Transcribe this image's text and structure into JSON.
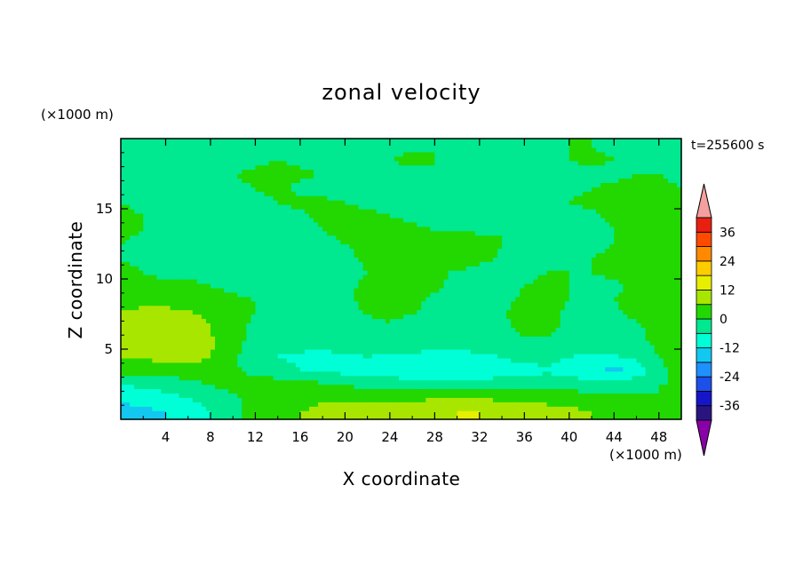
{
  "chart_data": {
    "type": "heatmap",
    "title": "zonal velocity",
    "xlabel": "X coordinate",
    "ylabel": "Z coordinate",
    "x_unit": "(×1000 m)",
    "y_unit": "(×1000 m)",
    "time_label": "t=255600 s",
    "xlim": [
      0,
      50
    ],
    "ylim": [
      0,
      20
    ],
    "x_ticks": [
      4,
      8,
      12,
      16,
      20,
      24,
      28,
      32,
      36,
      40,
      44,
      48
    ],
    "y_ticks": [
      5,
      10,
      15
    ],
    "colorbar": {
      "levels": [
        -42,
        -36,
        -30,
        -24,
        -18,
        -12,
        -6,
        0,
        6,
        12,
        18,
        24,
        30,
        36,
        42
      ],
      "labels": [
        36,
        24,
        12,
        0,
        -12,
        -24,
        -36
      ],
      "colors": [
        "#5c00a8",
        "#2a1580",
        "#1616c8",
        "#1c50e8",
        "#1e90ff",
        "#12c8f0",
        "#00ffd6",
        "#00e890",
        "#22d800",
        "#a8e600",
        "#e6ef00",
        "#ffcc00",
        "#ff8a00",
        "#ff4a00",
        "#e82010",
        "#f4a0a0"
      ],
      "under_color": "#8a00a8",
      "over_color": "#f4a0a0"
    },
    "field": {
      "x": [
        0,
        2,
        4,
        6,
        8,
        10,
        12,
        14,
        16,
        18,
        20,
        22,
        24,
        26,
        28,
        30,
        32,
        34,
        36,
        38,
        40,
        42,
        44,
        46,
        48,
        50
      ],
      "z": [
        0.5,
        1.5,
        2.5,
        3.5,
        4.5,
        5.5,
        6.5,
        7.5,
        8.5,
        9.5,
        10.5,
        11.5,
        12.5,
        13.5,
        14.5,
        15.5,
        16.5,
        17.5,
        18.5,
        19.5
      ],
      "values": [
        [
          -16,
          -14,
          -12,
          -10,
          -6,
          -2,
          2,
          4,
          6,
          8,
          8,
          9,
          10,
          10,
          11,
          12,
          12,
          11,
          10,
          9,
          8,
          6,
          4,
          2,
          1,
          0
        ],
        [
          -10,
          -9,
          -8,
          -6,
          -4,
          -1,
          2,
          3,
          4,
          5,
          5,
          5,
          5,
          5,
          6,
          6,
          6,
          5,
          5,
          4,
          3,
          3,
          2,
          1,
          0,
          0
        ],
        [
          -6,
          -5,
          -4,
          -2,
          0,
          2,
          4,
          3,
          2,
          1,
          0,
          -2,
          -3,
          -3,
          -3,
          -3,
          -3,
          -3,
          -2,
          -2,
          -2,
          -4,
          -3,
          -2,
          0,
          0
        ],
        [
          2,
          2,
          3,
          3,
          4,
          1,
          -2,
          -4,
          -6,
          -7,
          -8,
          -9,
          -9,
          -10,
          -11,
          -11,
          -10,
          -9,
          -8,
          -7,
          -8,
          -11,
          -14,
          -10,
          -2,
          2
        ],
        [
          6,
          7,
          8,
          8,
          6,
          1,
          -3,
          -6,
          -7,
          -8,
          -7,
          -6,
          -7,
          -7,
          -8,
          -8,
          -7,
          -6,
          -4,
          -4,
          -6,
          -7,
          -7,
          -4,
          0,
          4
        ],
        [
          9,
          11,
          11,
          10,
          7,
          2,
          -2,
          -3,
          -4,
          -3,
          -3,
          -2,
          -2,
          -3,
          -4,
          -4,
          -3,
          -2,
          -1,
          -1,
          -2,
          -3,
          -3,
          -1,
          1,
          6
        ],
        [
          9,
          10,
          10,
          9,
          6,
          2,
          -1,
          -2,
          -3,
          -3,
          -2,
          -1,
          -1,
          -2,
          -2,
          -2,
          -1,
          -1,
          1,
          1,
          -1,
          -2,
          -2,
          -1,
          2,
          6
        ],
        [
          7,
          8,
          8,
          7,
          5,
          1,
          0,
          -1,
          -2,
          -2,
          -1,
          0,
          1,
          0,
          -1,
          -2,
          -1,
          0,
          1,
          1,
          -1,
          -2,
          -1,
          1,
          3,
          4
        ],
        [
          4,
          4,
          4,
          3,
          2,
          1,
          0,
          -2,
          -3,
          -2,
          -1,
          1,
          2,
          1,
          -1,
          -2,
          -2,
          -1,
          1,
          2,
          0,
          -1,
          0,
          2,
          2,
          3
        ],
        [
          2,
          2,
          1,
          1,
          0,
          -1,
          -2,
          -3,
          -4,
          -3,
          -1,
          1,
          2,
          2,
          1,
          -2,
          -3,
          -2,
          0,
          1,
          0,
          -1,
          -1,
          1,
          2,
          2
        ],
        [
          1,
          0,
          -1,
          -1,
          -2,
          -2,
          -3,
          -3,
          -4,
          -3,
          -2,
          0,
          2,
          3,
          2,
          -1,
          -3,
          -3,
          -1,
          0,
          0,
          0,
          1,
          1,
          1,
          1
        ],
        [
          0,
          -1,
          -1,
          -2,
          -2,
          -3,
          -3,
          -4,
          -4,
          -3,
          -1,
          1,
          2,
          3,
          4,
          5,
          2,
          -1,
          -2,
          -1,
          -1,
          0,
          1,
          2,
          1,
          0
        ],
        [
          0,
          -1,
          -2,
          -2,
          -2,
          -3,
          -4,
          -4,
          -3,
          -1,
          0,
          1,
          2,
          4,
          6,
          6,
          3,
          0,
          -2,
          -1,
          -2,
          -1,
          0,
          1,
          1,
          0
        ],
        [
          1,
          0,
          -1,
          -1,
          -2,
          -3,
          -3,
          -3,
          -2,
          0,
          1,
          2,
          2,
          1,
          0,
          -1,
          -1,
          0,
          -1,
          -2,
          -2,
          -1,
          0,
          1,
          1,
          1
        ],
        [
          1,
          0,
          0,
          -1,
          -2,
          -2,
          -2,
          -2,
          -1,
          1,
          2,
          1,
          0,
          -1,
          -2,
          -2,
          -2,
          -1,
          -2,
          -2,
          -1,
          -1,
          1,
          2,
          1,
          1
        ],
        [
          0,
          -1,
          -2,
          -2,
          -3,
          -2,
          -1,
          0,
          1,
          1,
          0,
          -1,
          -2,
          -2,
          -2,
          -1,
          -1,
          -2,
          -1,
          -1,
          0,
          1,
          1,
          2,
          2,
          1
        ],
        [
          -1,
          -2,
          -2,
          -2,
          -2,
          -1,
          0,
          1,
          -1,
          -2,
          -2,
          -1,
          -1,
          -1,
          -2,
          -1,
          -1,
          -2,
          -1,
          -2,
          -1,
          0,
          1,
          1,
          1,
          0
        ],
        [
          -1,
          -2,
          -2,
          -2,
          -1,
          0,
          1,
          2,
          1,
          0,
          -1,
          -2,
          -2,
          -1,
          0,
          -1,
          -2,
          -2,
          -1,
          -1,
          -1,
          -2,
          -1,
          0,
          0,
          -1
        ],
        [
          -2,
          -2,
          -1,
          0,
          -1,
          -2,
          -1,
          0,
          -1,
          -2,
          -2,
          -1,
          0,
          1,
          0,
          -1,
          -1,
          -2,
          -2,
          -1,
          0,
          1,
          0,
          -1,
          -1,
          -1
        ],
        [
          -2,
          -2,
          -1,
          -1,
          0,
          -1,
          -1,
          0,
          -1,
          -1,
          -2,
          -2,
          -1,
          -1,
          0,
          -1,
          -1,
          -2,
          -1,
          -1,
          0,
          0,
          -1,
          -1,
          -1,
          -2
        ]
      ]
    }
  }
}
